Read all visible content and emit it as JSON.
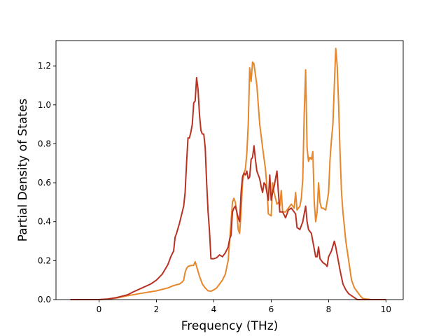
{
  "chart_data": {
    "type": "line",
    "title": "",
    "xlabel": "Frequency (THz)",
    "ylabel": "Partial Density of States",
    "xlim": [
      -1.5,
      10.6
    ],
    "ylim": [
      0.0,
      1.33
    ],
    "xticks": [
      0,
      2,
      4,
      6,
      8,
      10
    ],
    "yticks": [
      0.0,
      0.2,
      0.4,
      0.6,
      0.8,
      1.0,
      1.2
    ],
    "xtick_labels": [
      "0",
      "2",
      "4",
      "6",
      "8",
      "10"
    ],
    "ytick_labels": [
      "0.0",
      "0.2",
      "0.4",
      "0.6",
      "0.8",
      "1.0",
      "1.2"
    ],
    "grid": false,
    "legend": "none",
    "series": [
      {
        "color": "#e8862a",
        "points": [
          [
            -1.0,
            0.0
          ],
          [
            -0.5,
            0.0
          ],
          [
            0.0,
            0.0
          ],
          [
            0.3,
            0.002
          ],
          [
            0.6,
            0.008
          ],
          [
            1.0,
            0.02
          ],
          [
            1.5,
            0.033
          ],
          [
            2.0,
            0.045
          ],
          [
            2.4,
            0.06
          ],
          [
            2.6,
            0.072
          ],
          [
            2.8,
            0.08
          ],
          [
            2.9,
            0.09
          ],
          [
            2.95,
            0.1
          ],
          [
            3.0,
            0.14
          ],
          [
            3.05,
            0.16
          ],
          [
            3.1,
            0.17
          ],
          [
            3.2,
            0.175
          ],
          [
            3.3,
            0.176
          ],
          [
            3.35,
            0.195
          ],
          [
            3.4,
            0.17
          ],
          [
            3.5,
            0.12
          ],
          [
            3.6,
            0.08
          ],
          [
            3.7,
            0.06
          ],
          [
            3.8,
            0.045
          ],
          [
            3.9,
            0.043
          ],
          [
            4.0,
            0.05
          ],
          [
            4.1,
            0.06
          ],
          [
            4.2,
            0.08
          ],
          [
            4.3,
            0.1
          ],
          [
            4.4,
            0.13
          ],
          [
            4.5,
            0.2
          ],
          [
            4.55,
            0.3
          ],
          [
            4.6,
            0.4
          ],
          [
            4.65,
            0.5
          ],
          [
            4.7,
            0.52
          ],
          [
            4.75,
            0.5
          ],
          [
            4.8,
            0.45
          ],
          [
            4.85,
            0.36
          ],
          [
            4.9,
            0.34
          ],
          [
            4.95,
            0.45
          ],
          [
            5.0,
            0.6
          ],
          [
            5.05,
            0.65
          ],
          [
            5.1,
            0.67
          ],
          [
            5.15,
            0.75
          ],
          [
            5.2,
            0.9
          ],
          [
            5.25,
            1.19
          ],
          [
            5.3,
            1.12
          ],
          [
            5.35,
            1.22
          ],
          [
            5.4,
            1.21
          ],
          [
            5.5,
            1.1
          ],
          [
            5.6,
            0.9
          ],
          [
            5.7,
            0.78
          ],
          [
            5.8,
            0.67
          ],
          [
            5.85,
            0.58
          ],
          [
            5.9,
            0.44
          ],
          [
            6.0,
            0.43
          ],
          [
            6.05,
            0.6
          ],
          [
            6.1,
            0.55
          ],
          [
            6.15,
            0.52
          ],
          [
            6.2,
            0.49
          ],
          [
            6.25,
            0.5
          ],
          [
            6.3,
            0.48
          ],
          [
            6.35,
            0.56
          ],
          [
            6.4,
            0.45
          ],
          [
            6.5,
            0.45
          ],
          [
            6.6,
            0.47
          ],
          [
            6.7,
            0.49
          ],
          [
            6.8,
            0.47
          ],
          [
            6.85,
            0.55
          ],
          [
            6.9,
            0.46
          ],
          [
            7.0,
            0.48
          ],
          [
            7.05,
            0.52
          ],
          [
            7.1,
            0.62
          ],
          [
            7.15,
            0.95
          ],
          [
            7.2,
            1.18
          ],
          [
            7.25,
            0.78
          ],
          [
            7.3,
            0.71
          ],
          [
            7.35,
            0.73
          ],
          [
            7.4,
            0.72
          ],
          [
            7.45,
            0.76
          ],
          [
            7.5,
            0.5
          ],
          [
            7.55,
            0.4
          ],
          [
            7.6,
            0.45
          ],
          [
            7.65,
            0.6
          ],
          [
            7.7,
            0.5
          ],
          [
            7.75,
            0.47
          ],
          [
            7.8,
            0.47
          ],
          [
            7.9,
            0.46
          ],
          [
            8.0,
            0.55
          ],
          [
            8.05,
            0.72
          ],
          [
            8.1,
            0.82
          ],
          [
            8.15,
            0.9
          ],
          [
            8.2,
            1.1
          ],
          [
            8.25,
            1.29
          ],
          [
            8.3,
            1.2
          ],
          [
            8.35,
            1.0
          ],
          [
            8.4,
            0.75
          ],
          [
            8.45,
            0.55
          ],
          [
            8.5,
            0.45
          ],
          [
            8.6,
            0.3
          ],
          [
            8.7,
            0.2
          ],
          [
            8.8,
            0.1
          ],
          [
            8.9,
            0.06
          ],
          [
            9.0,
            0.04
          ],
          [
            9.1,
            0.02
          ],
          [
            9.2,
            0.005
          ],
          [
            9.5,
            0.0
          ],
          [
            10.0,
            0.0
          ]
        ]
      },
      {
        "color": "#b83224",
        "points": [
          [
            -1.0,
            0.0
          ],
          [
            -0.5,
            0.0
          ],
          [
            0.0,
            0.0
          ],
          [
            0.3,
            0.003
          ],
          [
            0.6,
            0.01
          ],
          [
            1.0,
            0.025
          ],
          [
            1.2,
            0.04
          ],
          [
            1.5,
            0.06
          ],
          [
            1.8,
            0.08
          ],
          [
            2.0,
            0.1
          ],
          [
            2.2,
            0.13
          ],
          [
            2.4,
            0.18
          ],
          [
            2.5,
            0.22
          ],
          [
            2.6,
            0.25
          ],
          [
            2.65,
            0.32
          ],
          [
            2.7,
            0.34
          ],
          [
            2.8,
            0.39
          ],
          [
            2.9,
            0.45
          ],
          [
            2.95,
            0.48
          ],
          [
            3.0,
            0.55
          ],
          [
            3.05,
            0.7
          ],
          [
            3.1,
            0.83
          ],
          [
            3.15,
            0.83
          ],
          [
            3.2,
            0.86
          ],
          [
            3.25,
            0.9
          ],
          [
            3.3,
            1.01
          ],
          [
            3.35,
            1.02
          ],
          [
            3.4,
            1.14
          ],
          [
            3.45,
            1.08
          ],
          [
            3.5,
            0.95
          ],
          [
            3.55,
            0.87
          ],
          [
            3.6,
            0.85
          ],
          [
            3.65,
            0.85
          ],
          [
            3.7,
            0.78
          ],
          [
            3.75,
            0.6
          ],
          [
            3.8,
            0.45
          ],
          [
            3.85,
            0.35
          ],
          [
            3.9,
            0.21
          ],
          [
            4.0,
            0.21
          ],
          [
            4.1,
            0.215
          ],
          [
            4.2,
            0.23
          ],
          [
            4.3,
            0.22
          ],
          [
            4.4,
            0.24
          ],
          [
            4.5,
            0.27
          ],
          [
            4.55,
            0.31
          ],
          [
            4.6,
            0.33
          ],
          [
            4.65,
            0.45
          ],
          [
            4.7,
            0.47
          ],
          [
            4.75,
            0.48
          ],
          [
            4.8,
            0.45
          ],
          [
            4.85,
            0.42
          ],
          [
            4.9,
            0.4
          ],
          [
            4.95,
            0.55
          ],
          [
            5.0,
            0.63
          ],
          [
            5.05,
            0.65
          ],
          [
            5.1,
            0.64
          ],
          [
            5.15,
            0.66
          ],
          [
            5.2,
            0.62
          ],
          [
            5.25,
            0.63
          ],
          [
            5.3,
            0.72
          ],
          [
            5.35,
            0.73
          ],
          [
            5.4,
            0.79
          ],
          [
            5.45,
            0.72
          ],
          [
            5.5,
            0.66
          ],
          [
            5.55,
            0.64
          ],
          [
            5.6,
            0.62
          ],
          [
            5.65,
            0.58
          ],
          [
            5.7,
            0.55
          ],
          [
            5.75,
            0.6
          ],
          [
            5.8,
            0.59
          ],
          [
            5.85,
            0.55
          ],
          [
            5.9,
            0.51
          ],
          [
            5.95,
            0.64
          ],
          [
            6.0,
            0.51
          ],
          [
            6.05,
            0.55
          ],
          [
            6.1,
            0.58
          ],
          [
            6.15,
            0.62
          ],
          [
            6.2,
            0.66
          ],
          [
            6.25,
            0.55
          ],
          [
            6.3,
            0.45
          ],
          [
            6.4,
            0.45
          ],
          [
            6.5,
            0.42
          ],
          [
            6.6,
            0.46
          ],
          [
            6.7,
            0.47
          ],
          [
            6.8,
            0.45
          ],
          [
            6.85,
            0.44
          ],
          [
            6.9,
            0.37
          ],
          [
            7.0,
            0.36
          ],
          [
            7.1,
            0.4
          ],
          [
            7.2,
            0.48
          ],
          [
            7.25,
            0.4
          ],
          [
            7.3,
            0.36
          ],
          [
            7.4,
            0.34
          ],
          [
            7.5,
            0.26
          ],
          [
            7.55,
            0.22
          ],
          [
            7.6,
            0.22
          ],
          [
            7.65,
            0.27
          ],
          [
            7.7,
            0.21
          ],
          [
            7.8,
            0.19
          ],
          [
            7.9,
            0.18
          ],
          [
            7.95,
            0.17
          ],
          [
            8.0,
            0.22
          ],
          [
            8.1,
            0.25
          ],
          [
            8.2,
            0.3
          ],
          [
            8.25,
            0.27
          ],
          [
            8.3,
            0.23
          ],
          [
            8.4,
            0.15
          ],
          [
            8.5,
            0.08
          ],
          [
            8.6,
            0.05
          ],
          [
            8.7,
            0.03
          ],
          [
            8.8,
            0.02
          ],
          [
            8.9,
            0.01
          ],
          [
            9.0,
            0.0
          ],
          [
            9.5,
            0.0
          ],
          [
            10.0,
            0.0
          ]
        ]
      }
    ]
  }
}
